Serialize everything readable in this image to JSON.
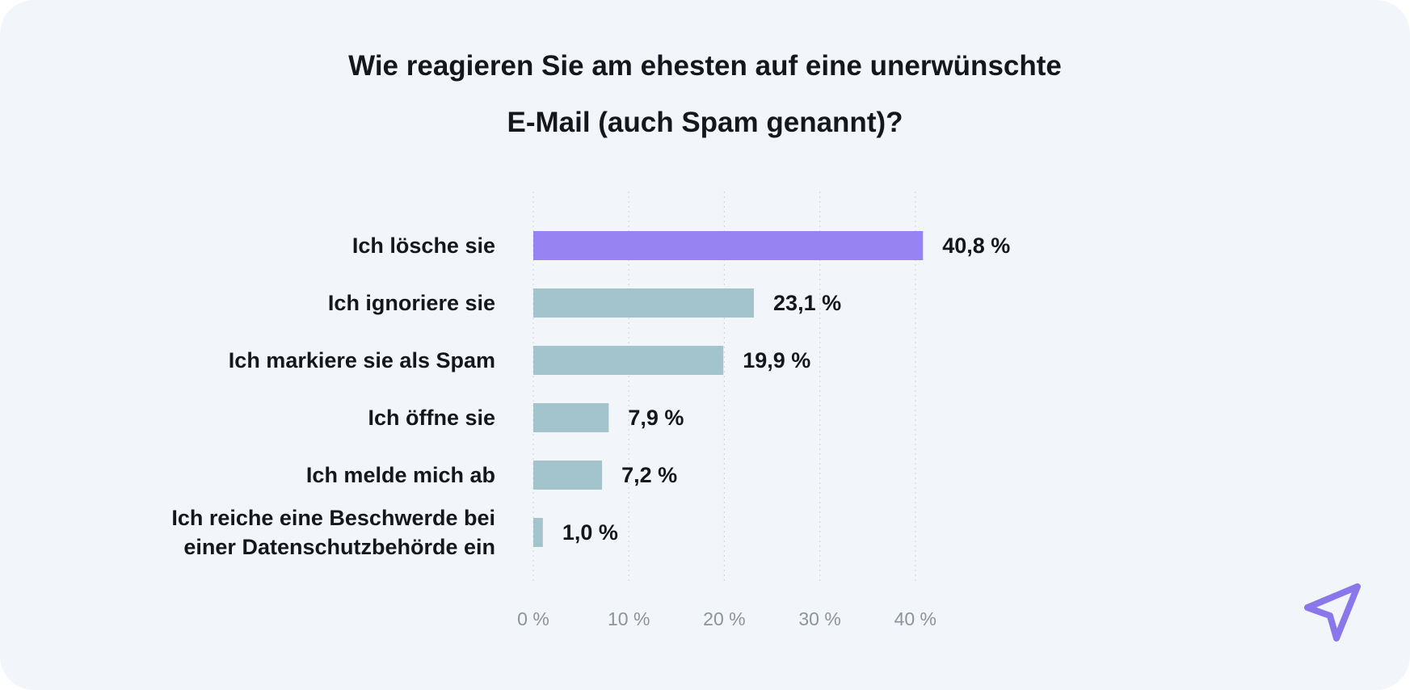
{
  "colors": {
    "highlight": "#9784f2",
    "bar": "#a3c3cd",
    "background": "#f2f6fa",
    "text": "#15171d",
    "tick": "#8d9398",
    "grid": "#d3d8dd"
  },
  "logo": {
    "icon": "paper-plane-icon",
    "color": "#8a77ec"
  },
  "chart_data": {
    "type": "bar",
    "orientation": "horizontal",
    "title": "Wie reagieren Sie am ehesten auf eine unerwünschte E-Mail (auch Spam genannt)?",
    "title_lines": [
      "Wie reagieren Sie am ehesten auf eine unerwünschte",
      "E-Mail (auch Spam genannt)?"
    ],
    "categories": [
      [
        "Ich lösche sie"
      ],
      [
        "Ich ignoriere sie"
      ],
      [
        "Ich markiere sie als Spam"
      ],
      [
        "Ich öffne sie"
      ],
      [
        "Ich melde mich ab"
      ],
      [
        "Ich reiche eine Beschwerde bei",
        "einer Datenschutzbehörde ein"
      ]
    ],
    "values": [
      40.8,
      23.1,
      19.9,
      7.9,
      7.2,
      1.0
    ],
    "value_labels": [
      "40,8 %",
      "23,1 %",
      "19,9 %",
      "7,9 %",
      "7,2 %",
      "1,0 %"
    ],
    "highlighted_index": 0,
    "xlim": [
      0,
      40
    ],
    "x_ticks": [
      0,
      10,
      20,
      30,
      40
    ],
    "x_tick_labels": [
      "0 %",
      "10 %",
      "20 %",
      "30 %",
      "40 %"
    ],
    "xlabel": "",
    "ylabel": "",
    "grid": true
  }
}
